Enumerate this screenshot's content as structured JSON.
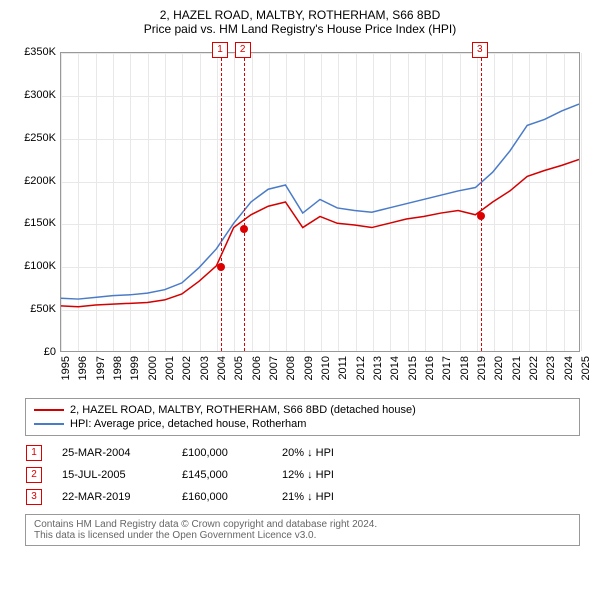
{
  "title_line1": "2, HAZEL ROAD, MALTBY, ROTHERHAM, S66 8BD",
  "title_line2": "Price paid vs. HM Land Registry's House Price Index (HPI)",
  "chart": {
    "type": "line",
    "background_color": "#ffffff",
    "grid_color": "#e8e8e8",
    "border_color": "#999999",
    "y_axis": {
      "min": 0,
      "max": 350000,
      "step": 50000,
      "labels": [
        "£0",
        "£50K",
        "£100K",
        "£150K",
        "£200K",
        "£250K",
        "£300K",
        "£350K"
      ]
    },
    "x_axis": {
      "min": 1995,
      "max": 2025,
      "years": [
        1995,
        1996,
        1997,
        1998,
        1999,
        2000,
        2001,
        2002,
        2003,
        2004,
        2005,
        2006,
        2007,
        2008,
        2009,
        2010,
        2011,
        2012,
        2013,
        2014,
        2015,
        2016,
        2017,
        2018,
        2019,
        2020,
        2021,
        2022,
        2023,
        2024,
        2025
      ]
    },
    "series": [
      {
        "name": "property",
        "label": "2, HAZEL ROAD, MALTBY, ROTHERHAM, S66 8BD (detached house)",
        "color": "#d40000",
        "line_width": 1.5,
        "data": [
          [
            1995,
            53000
          ],
          [
            1996,
            52000
          ],
          [
            1997,
            54000
          ],
          [
            1998,
            55000
          ],
          [
            1999,
            56000
          ],
          [
            2000,
            57000
          ],
          [
            2001,
            60000
          ],
          [
            2002,
            67000
          ],
          [
            2003,
            82000
          ],
          [
            2004,
            100000
          ],
          [
            2005,
            145000
          ],
          [
            2006,
            160000
          ],
          [
            2007,
            170000
          ],
          [
            2008,
            175000
          ],
          [
            2009,
            145000
          ],
          [
            2010,
            158000
          ],
          [
            2011,
            150000
          ],
          [
            2012,
            148000
          ],
          [
            2013,
            145000
          ],
          [
            2014,
            150000
          ],
          [
            2015,
            155000
          ],
          [
            2016,
            158000
          ],
          [
            2017,
            162000
          ],
          [
            2018,
            165000
          ],
          [
            2019,
            160000
          ],
          [
            2020,
            175000
          ],
          [
            2021,
            188000
          ],
          [
            2022,
            205000
          ],
          [
            2023,
            212000
          ],
          [
            2024,
            218000
          ],
          [
            2025,
            225000
          ]
        ]
      },
      {
        "name": "hpi",
        "label": "HPI: Average price, detached house, Rotherham",
        "color": "#4a7bc8",
        "line_width": 1.5,
        "data": [
          [
            1995,
            62000
          ],
          [
            1996,
            61000
          ],
          [
            1997,
            63000
          ],
          [
            1998,
            65000
          ],
          [
            1999,
            66000
          ],
          [
            2000,
            68000
          ],
          [
            2001,
            72000
          ],
          [
            2002,
            80000
          ],
          [
            2003,
            98000
          ],
          [
            2004,
            120000
          ],
          [
            2005,
            150000
          ],
          [
            2006,
            175000
          ],
          [
            2007,
            190000
          ],
          [
            2008,
            195000
          ],
          [
            2009,
            162000
          ],
          [
            2010,
            178000
          ],
          [
            2011,
            168000
          ],
          [
            2012,
            165000
          ],
          [
            2013,
            163000
          ],
          [
            2014,
            168000
          ],
          [
            2015,
            173000
          ],
          [
            2016,
            178000
          ],
          [
            2017,
            183000
          ],
          [
            2018,
            188000
          ],
          [
            2019,
            192000
          ],
          [
            2020,
            210000
          ],
          [
            2021,
            235000
          ],
          [
            2022,
            265000
          ],
          [
            2023,
            272000
          ],
          [
            2024,
            282000
          ],
          [
            2025,
            290000
          ]
        ]
      }
    ],
    "sale_markers": [
      {
        "num": "1",
        "year": 2004.23,
        "price": 100000
      },
      {
        "num": "2",
        "year": 2005.54,
        "price": 145000
      },
      {
        "num": "3",
        "year": 2019.22,
        "price": 160000
      }
    ]
  },
  "legend": {
    "items": [
      {
        "color": "#d40000",
        "label": "2, HAZEL ROAD, MALTBY, ROTHERHAM, S66 8BD (detached house)"
      },
      {
        "color": "#4a7bc8",
        "label": "HPI: Average price, detached house, Rotherham"
      }
    ]
  },
  "sales": [
    {
      "num": "1",
      "date": "25-MAR-2004",
      "price": "£100,000",
      "pct": "20% ↓ HPI"
    },
    {
      "num": "2",
      "date": "15-JUL-2005",
      "price": "£145,000",
      "pct": "12% ↓ HPI"
    },
    {
      "num": "3",
      "date": "22-MAR-2019",
      "price": "£160,000",
      "pct": "21% ↓ HPI"
    }
  ],
  "footer_line1": "Contains HM Land Registry data © Crown copyright and database right 2024.",
  "footer_line2": "This data is licensed under the Open Government Licence v3.0."
}
